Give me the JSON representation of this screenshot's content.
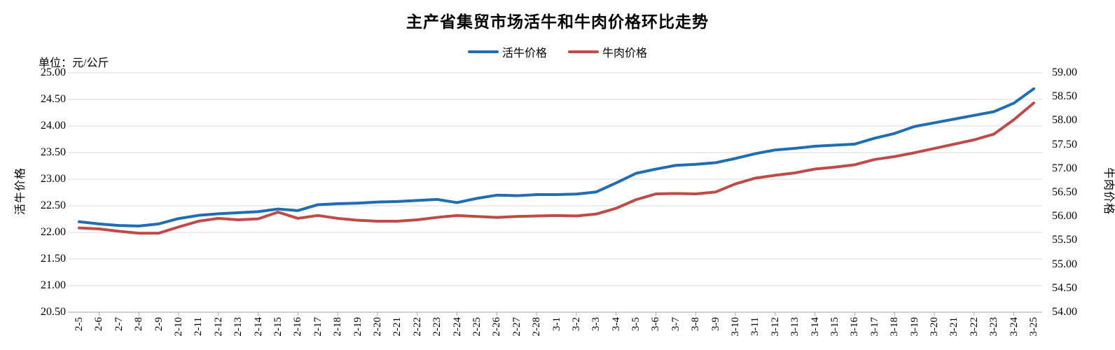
{
  "chart_data": {
    "type": "line",
    "title": "主产省集贸市场活牛和牛肉价格环比走势",
    "unit_label": "单位：元/公斤",
    "legend_position": "top",
    "grid": true,
    "categories": [
      "2-5",
      "2-6",
      "2-7",
      "2-8",
      "2-9",
      "2-10",
      "2-11",
      "2-12",
      "2-13",
      "2-14",
      "2-15",
      "2-16",
      "2-17",
      "2-18",
      "2-19",
      "2-20",
      "2-21",
      "2-22",
      "2-23",
      "2-24",
      "2-25",
      "2-26",
      "2-27",
      "2-28",
      "3-1",
      "3-2",
      "3-3",
      "3-4",
      "3-5",
      "3-6",
      "3-7",
      "3-8",
      "3-9",
      "3-10",
      "3-11",
      "3-12",
      "3-13",
      "3-14",
      "3-15",
      "3-16",
      "3-17",
      "3-18",
      "3-19",
      "3-20",
      "3-21",
      "3-22",
      "3-23",
      "3-24",
      "3-25"
    ],
    "series": [
      {
        "name": "活牛价格",
        "axis": "left",
        "color": "#1F6DB3",
        "values": [
          22.2,
          22.16,
          22.13,
          22.12,
          22.16,
          22.26,
          22.32,
          22.35,
          22.37,
          22.39,
          22.44,
          22.41,
          22.52,
          22.54,
          22.55,
          22.57,
          22.58,
          22.6,
          22.62,
          22.56,
          22.64,
          22.7,
          22.69,
          22.71,
          22.71,
          22.72,
          22.76,
          22.93,
          23.11,
          23.19,
          23.26,
          23.28,
          23.31,
          23.39,
          23.48,
          23.55,
          23.58,
          23.62,
          23.64,
          23.66,
          23.77,
          23.86,
          23.99,
          24.06,
          24.13,
          24.2,
          24.27,
          24.43,
          24.7
        ]
      },
      {
        "name": "牛肉价格",
        "axis": "right",
        "color": "#BE4B48",
        "values": [
          55.76,
          55.74,
          55.69,
          55.65,
          55.65,
          55.78,
          55.9,
          55.96,
          55.93,
          55.95,
          56.09,
          55.96,
          56.02,
          55.96,
          55.92,
          55.9,
          55.9,
          55.93,
          55.98,
          56.02,
          56.0,
          55.98,
          56.0,
          56.01,
          56.02,
          56.01,
          56.05,
          56.17,
          56.35,
          56.47,
          56.48,
          56.47,
          56.51,
          56.68,
          56.8,
          56.86,
          56.91,
          56.99,
          57.03,
          57.08,
          57.19,
          57.25,
          57.33,
          57.42,
          57.51,
          57.6,
          57.72,
          58.02,
          58.37
        ]
      }
    ],
    "left_axis": {
      "title": "活牛价格",
      "min": 20.5,
      "max": 25.0,
      "step": 0.5,
      "tick_labels": [
        "25.00",
        "24.50",
        "24.00",
        "23.50",
        "23.00",
        "22.50",
        "22.00",
        "21.50",
        "21.00",
        "20.50"
      ]
    },
    "right_axis": {
      "title": "牛肉价格",
      "min": 54.0,
      "max": 59.0,
      "step": 0.5,
      "tick_labels": [
        "59.00",
        "58.50",
        "58.00",
        "57.50",
        "57.00",
        "56.50",
        "56.00",
        "55.50",
        "55.00",
        "54.50",
        "54.00"
      ]
    },
    "colors": {
      "gridline": "#D9D9D9",
      "axis_line": "#A6A6A6",
      "text": "#000000"
    }
  }
}
